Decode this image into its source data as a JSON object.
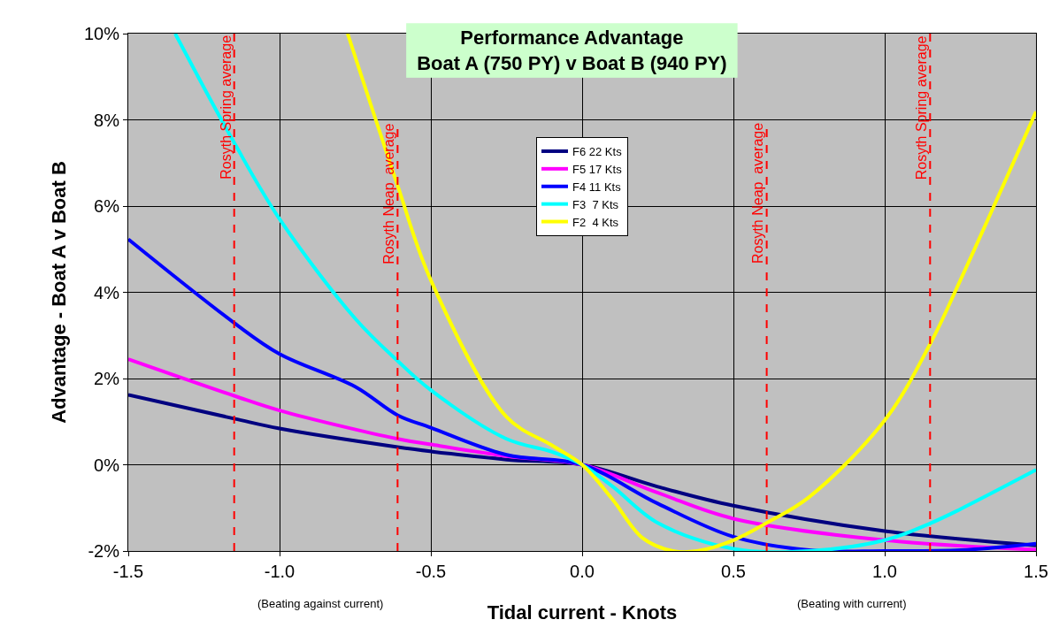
{
  "chart_data": {
    "type": "line",
    "title": "Performance Advantage\nBoat A (750 PY) v Boat B (940 PY)",
    "xlabel": "Tidal current - Knots",
    "ylabel": "Advantage - Boat A v Boat B",
    "xlim": [
      -1.5,
      1.5
    ],
    "xticks": [
      {
        "value": -1.5,
        "label": "-1.5"
      },
      {
        "value": -1,
        "label": "-1.0"
      },
      {
        "value": -0.5,
        "label": "-0.5"
      },
      {
        "value": 0,
        "label": "0.0"
      },
      {
        "value": 0.5,
        "label": "0.5"
      },
      {
        "value": 1,
        "label": "1.0"
      },
      {
        "value": 1.5,
        "label": "1.5"
      }
    ],
    "ylim": [
      -2,
      10
    ],
    "yticks": [
      {
        "value": -2,
        "label": "-2%"
      },
      {
        "value": 0,
        "label": "0%"
      },
      {
        "value": 2,
        "label": "2%"
      },
      {
        "value": 4,
        "label": "4%"
      },
      {
        "value": 6,
        "label": "6%"
      },
      {
        "value": 8,
        "label": "8%"
      },
      {
        "value": 10,
        "label": "10%"
      }
    ],
    "grid": true,
    "legend": "top",
    "marker": "none",
    "line_style": "solid",
    "series": [
      {
        "name": "F6 22 Kts",
        "color": "#000080",
        "x": [
          -1.5,
          -1.15,
          -1,
          -0.61,
          -0.5,
          -0.25,
          0,
          0.25,
          0.5,
          1,
          1.5
        ],
        "values": [
          1.62,
          1.07,
          0.84,
          0.41,
          0.31,
          0.12,
          0,
          -0.51,
          -0.95,
          -1.54,
          -1.87
        ]
      },
      {
        "name": "F5 17 Kts",
        "color": "#ff00ff",
        "x": [
          -1.5,
          -1.15,
          -1,
          -0.61,
          -0.5,
          -0.25,
          0,
          0.25,
          0.5,
          1,
          1.5
        ],
        "values": [
          2.45,
          1.6,
          1.26,
          0.6,
          0.47,
          0.2,
          0,
          -0.65,
          -1.25,
          -1.75,
          -1.97
        ]
      },
      {
        "name": "F4 11 Kts",
        "color": "#0000ff",
        "x": [
          -1.5,
          -1.15,
          -1,
          -0.75,
          -0.61,
          -0.5,
          -0.25,
          0,
          0.25,
          0.5,
          0.75,
          1,
          1.25,
          1.5
        ],
        "values": [
          5.23,
          3.29,
          2.57,
          1.81,
          1.15,
          0.86,
          0.23,
          0,
          -0.9,
          -1.67,
          -1.98,
          -2,
          -1.98,
          -1.83
        ]
      },
      {
        "name": "F3  7 Kts",
        "color": "#00ffff",
        "x": [
          -1.345,
          -1.15,
          -1,
          -0.75,
          -0.61,
          -0.5,
          -0.25,
          -0.1,
          0,
          0.1,
          0.25,
          0.5,
          0.75,
          1,
          1.15,
          1.25,
          1.5
        ],
        "values": [
          10,
          7.47,
          5.7,
          3.39,
          2.41,
          1.73,
          0.6,
          0.3,
          0,
          -0.5,
          -1.35,
          -1.95,
          -2,
          -1.75,
          -1.36,
          -1.03,
          -0.12
        ]
      },
      {
        "name": "F2  4 Kts",
        "color": "#ffff00",
        "x": [
          -0.775,
          -0.61,
          -0.5,
          -0.25,
          -0.1,
          0,
          0.1,
          0.2,
          0.3,
          0.38,
          0.5,
          0.61,
          0.75,
          1,
          1.15,
          1.25,
          1.5
        ],
        "values": [
          10,
          6.48,
          4.28,
          1.11,
          0.45,
          0,
          -0.8,
          -1.7,
          -2,
          -2,
          -1.75,
          -1.35,
          -0.75,
          1.03,
          2.8,
          4.28,
          8.19
        ]
      }
    ],
    "ref_lines": [
      {
        "axis": "x",
        "value": -1.15,
        "label": "Rosyth Spring average",
        "color": "#ff0000",
        "line_style": "dashed"
      },
      {
        "axis": "x",
        "value": -0.61,
        "label": "Rosyth Neap  average",
        "color": "#ff0000",
        "line_style": "dashed"
      },
      {
        "axis": "x",
        "value": 0.61,
        "label": "Rosyth Neap  average",
        "color": "#ff0000",
        "line_style": "dashed"
      },
      {
        "axis": "x",
        "value": 1.15,
        "label": "Rosyth Spring average",
        "color": "#ff0000",
        "line_style": "dashed"
      }
    ],
    "annotations": [
      "(Beating against current)",
      "(Beating with current)"
    ]
  }
}
